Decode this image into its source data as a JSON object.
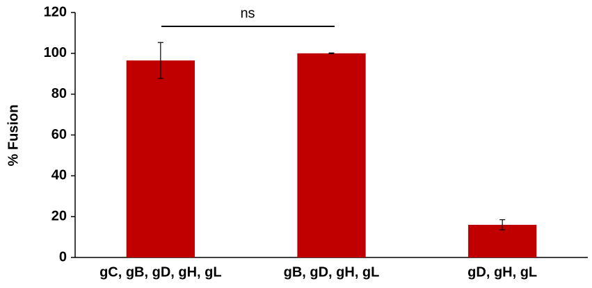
{
  "chart_data": {
    "type": "bar",
    "y_label": "% Fusion",
    "categories": [
      "gC, gB, gD, gH, gL",
      "gB, gD, gH, gL",
      "gD, gH, gL"
    ],
    "values": [
      96.5,
      100,
      16
    ],
    "errors": [
      8.8,
      0.2,
      2.5
    ],
    "color": "#c00000",
    "ylim": [
      0,
      120
    ],
    "yticks": [
      0,
      20,
      40,
      60,
      80,
      100,
      120
    ],
    "grid": false,
    "annotation": "ns"
  }
}
